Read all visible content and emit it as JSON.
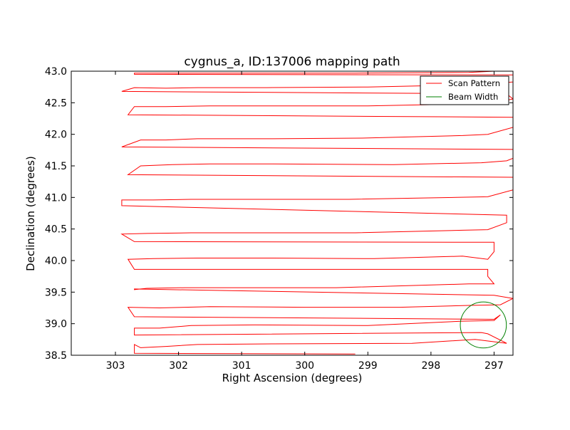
{
  "chart_data": {
    "type": "line",
    "title": "cygnus_a, ID:137006 mapping path",
    "xlabel": "Right Ascension (degrees)",
    "ylabel": "Declination (degrees)",
    "xlim": [
      303.7,
      296.7
    ],
    "ylim": [
      38.5,
      43.0
    ],
    "x_inverted": true,
    "xticks": [
      303,
      302,
      301,
      300,
      299,
      298,
      297
    ],
    "xtick_labels": [
      "303",
      "302",
      "301",
      "300",
      "299",
      "298",
      "297"
    ],
    "yticks": [
      38.5,
      39.0,
      39.5,
      40.0,
      40.5,
      41.0,
      41.5,
      42.0,
      42.5,
      43.0
    ],
    "ytick_labels": [
      "38.5",
      "39.0",
      "39.5",
      "40.0",
      "40.5",
      "41.0",
      "41.5",
      "42.0",
      "42.5",
      "43.0"
    ],
    "grid": false,
    "legend": {
      "placement": "top-right",
      "entries": [
        {
          "label": "Scan Pattern",
          "color": "#ff0000"
        },
        {
          "label": "Beam Width",
          "color": "#008000"
        }
      ]
    },
    "series": [
      {
        "name": "Scan Pattern",
        "color": "#ff0000",
        "x": [
          299.2,
          302.7,
          302.7,
          302.6,
          302.2,
          301.7,
          300.5,
          298.3,
          297.3,
          296.8,
          297.1,
          297.2,
          302.7,
          302.7,
          302.3,
          301.8,
          300.8,
          299.0,
          297.5,
          297.0,
          296.9,
          297.0,
          302.7,
          302.8,
          302.3,
          301.5,
          300.0,
          298.5,
          297.4,
          296.9,
          296.7,
          297.0,
          302.7,
          302.7,
          302.5,
          301.9,
          301.0,
          299.5,
          297.4,
          297.0,
          297.1,
          297.1,
          302.7,
          302.8,
          302.4,
          301.7,
          300.5,
          298.9,
          297.5,
          297.1,
          297.0,
          297.0,
          302.7,
          302.9,
          302.5,
          301.8,
          300.9,
          299.2,
          297.5,
          297.1,
          296.8,
          296.8,
          302.9,
          302.9,
          302.4,
          301.8,
          300.8,
          299.3,
          297.6,
          297.1,
          296.7,
          296.7,
          302.8,
          302.6,
          302.1,
          301.5,
          300.5,
          298.6,
          297.2,
          296.8,
          296.7,
          296.7,
          302.9,
          302.6,
          302.2,
          301.7,
          300.5,
          299.1,
          297.5,
          297.1,
          296.7,
          296.7,
          302.8,
          302.7,
          302.2,
          301.5,
          300.5,
          299.0,
          297.5,
          297.1,
          296.7,
          296.8,
          302.9,
          302.7,
          302.2,
          301.7,
          300.6,
          299.0,
          297.6,
          297.2,
          296.7,
          296.7,
          302.7,
          302.7,
          302.3,
          301.7,
          300.5,
          299.2,
          297.4,
          297.0
        ],
        "y": [
          38.52,
          38.53,
          38.67,
          38.62,
          38.64,
          38.67,
          38.68,
          38.69,
          38.75,
          38.69,
          38.84,
          38.86,
          38.82,
          38.93,
          38.93,
          38.97,
          38.98,
          38.97,
          39.04,
          39.05,
          39.14,
          39.07,
          39.11,
          39.26,
          39.25,
          39.27,
          39.26,
          39.26,
          39.29,
          39.3,
          39.4,
          39.45,
          39.55,
          39.54,
          39.56,
          39.57,
          39.57,
          39.57,
          39.63,
          39.63,
          39.75,
          39.86,
          39.86,
          40.02,
          40.03,
          40.04,
          40.04,
          40.03,
          40.07,
          40.02,
          40.14,
          40.29,
          40.3,
          40.42,
          40.43,
          40.44,
          40.44,
          40.44,
          40.48,
          40.49,
          40.6,
          40.72,
          40.87,
          40.96,
          40.96,
          40.97,
          40.97,
          40.97,
          41.0,
          41.01,
          41.12,
          41.32,
          41.36,
          41.5,
          41.52,
          41.53,
          41.53,
          41.52,
          41.55,
          41.58,
          41.62,
          41.76,
          41.8,
          41.91,
          41.91,
          41.93,
          41.93,
          41.94,
          41.98,
          42.0,
          42.11,
          42.27,
          42.31,
          42.44,
          42.44,
          42.45,
          42.45,
          42.45,
          42.48,
          42.48,
          42.56,
          42.64,
          42.68,
          42.74,
          42.73,
          42.74,
          42.74,
          42.75,
          42.78,
          42.79,
          42.83,
          42.94,
          42.95,
          42.97,
          42.97,
          42.97,
          42.97,
          42.97,
          42.98,
          43.0
        ]
      },
      {
        "name": "Beam Width",
        "color": "#008000",
        "shape": "circle",
        "center": [
          297.17,
          38.98
        ],
        "radius": 0.365
      }
    ]
  }
}
